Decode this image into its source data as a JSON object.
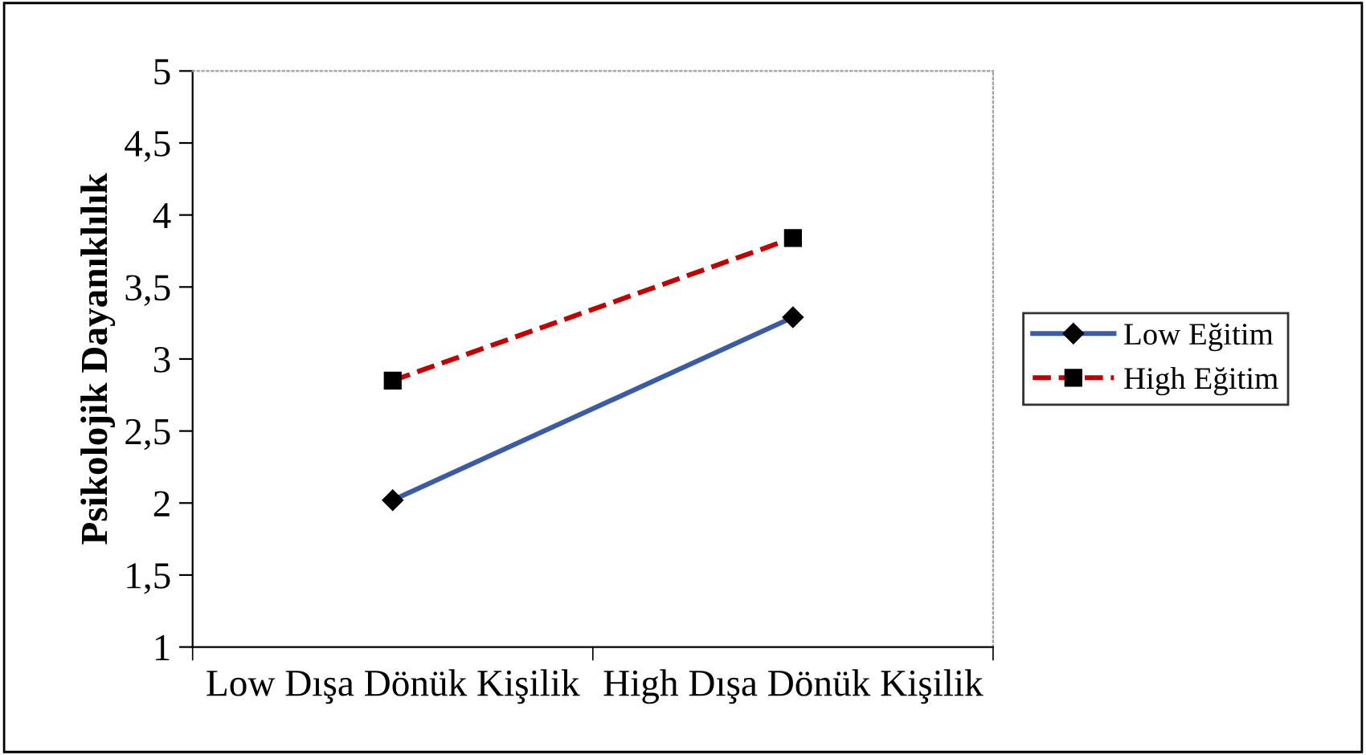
{
  "chart_data": {
    "type": "line",
    "ylabel": "Psikolojik Dayanıklılık",
    "categories": [
      "Low Dışa Dönük Kişilik",
      "High Dışa Dönük Kişilik"
    ],
    "series": [
      {
        "name": "Low Eğitim",
        "color": "#3b5ba5",
        "values": [
          2.02,
          3.29
        ],
        "marker": "diamond",
        "line_style": "solid"
      },
      {
        "name": "High Eğitim",
        "color": "#c00000",
        "values": [
          2.85,
          3.84
        ],
        "marker": "square",
        "line_style": "dashed"
      }
    ],
    "ylim": [
      1,
      5
    ],
    "yticks": [
      1,
      {
        "value": 1.5,
        "label": "1,5"
      },
      2,
      {
        "value": 2.5,
        "label": "2,5"
      },
      3,
      {
        "value": 3.5,
        "label": "3,5"
      },
      4,
      {
        "value": 4.5,
        "label": "4,5"
      },
      5
    ],
    "grid": false,
    "legend": "right"
  }
}
